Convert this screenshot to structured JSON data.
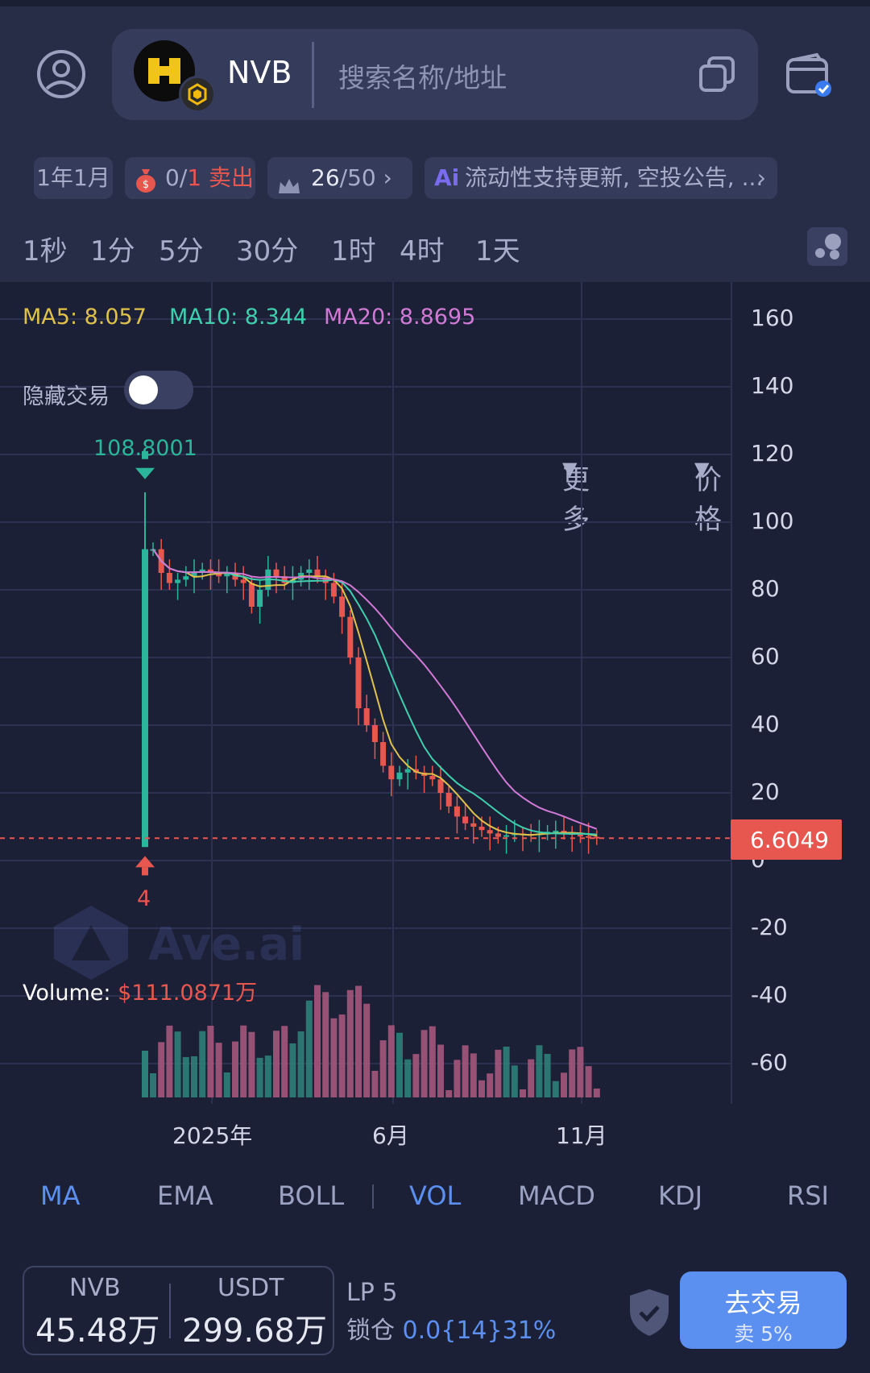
{
  "header": {
    "token_symbol": "NVB",
    "search_placeholder": "搜索名称/地址"
  },
  "info_chips": {
    "age": "1年1月",
    "sell_tax": {
      "count": "0",
      "total": "1",
      "label": "卖出"
    },
    "top_holders": {
      "value": "26",
      "total": "50"
    },
    "ai_summary": "流动性支持更新, 空投公告, ..."
  },
  "timeframes": [
    "1秒",
    "1分",
    "5分",
    "30分",
    "1时",
    "4时",
    "1天"
  ],
  "more_label": "更多",
  "price_label": "价格",
  "legend": {
    "ma5": "MA5: 8.057",
    "ma10": "MA10: 8.344",
    "ma20": "MA20: 8.8695"
  },
  "hide_trades_label": "隐藏交易",
  "watermark": "Ave.ai",
  "volume": {
    "label": "Volume:",
    "value": "$111.0871万"
  },
  "chart_data": {
    "type": "candlestick",
    "y_ticks": [
      "160",
      "140",
      "120",
      "100",
      "80",
      "60",
      "40",
      "20",
      "0",
      "-20",
      "-40",
      "-60"
    ],
    "ylim": [
      -70,
      165
    ],
    "x_ticks": [
      "2025年",
      "6月",
      "11月"
    ],
    "current_price": "6.6049",
    "high_marker": "108.8001",
    "low_marker": "4",
    "close_series": [
      92,
      85,
      82,
      83,
      84,
      85,
      86,
      85,
      84,
      85,
      83,
      82,
      75,
      80,
      86,
      84,
      82,
      83,
      85,
      86,
      84,
      82,
      78,
      72,
      60,
      45,
      40,
      35,
      28,
      24,
      26,
      27,
      26,
      25,
      24,
      20,
      16,
      13,
      11,
      10,
      9,
      8,
      7,
      7.5,
      8,
      7.8,
      7.5,
      8,
      8.5,
      8.8,
      8.2,
      7.6,
      7.2,
      7,
      6.6
    ],
    "ma_colors": {
      "ma5": "#e0c24a",
      "ma10": "#3fcfae",
      "ma20": "#d07ad6"
    },
    "up_color": "#2bb59a",
    "down_color": "#e8574f"
  },
  "indicators": {
    "main": [
      "MA",
      "EMA",
      "BOLL"
    ],
    "sub": [
      "VOL",
      "MACD",
      "KDJ",
      "RSI"
    ],
    "active_main": "MA",
    "active_sub": "VOL"
  },
  "liquidity": {
    "token": {
      "symbol": "NVB",
      "amount": "45.48万"
    },
    "quote": {
      "symbol": "USDT",
      "amount": "299.68万"
    },
    "lp_label": "LP 5",
    "lock_label": "锁仓",
    "lock_value": "0.0{14}31%"
  },
  "trade_button": {
    "label": "去交易",
    "sub": "卖 5%"
  },
  "colors": {
    "accent": "#5b8ff0",
    "sell": "#e8574f",
    "buy": "#2bb59a"
  }
}
